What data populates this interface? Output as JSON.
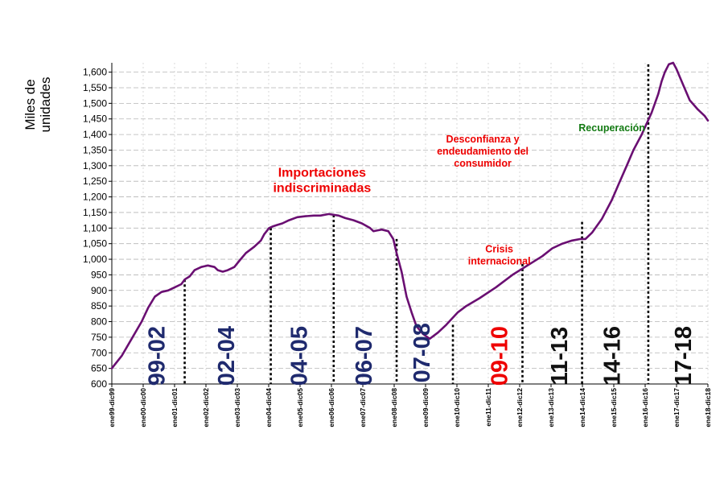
{
  "chart_data": {
    "type": "line",
    "ylabel_lines": [
      "Miles de",
      "unidades"
    ],
    "ylim": [
      600,
      1630
    ],
    "yticks": [
      600,
      650,
      700,
      750,
      800,
      850,
      900,
      950,
      1000,
      1050,
      1100,
      1150,
      1200,
      1250,
      1300,
      1350,
      1400,
      1450,
      1500,
      1550,
      1600
    ],
    "ytick_labels": [
      "600",
      "650",
      "700",
      "750",
      "800",
      "850",
      "900",
      "950",
      "1,000",
      "1,050",
      "1,100",
      "1,150",
      "1,200",
      "1,250",
      "1,300",
      "1,350",
      "1,400",
      "1,450",
      "1,500",
      "1,550",
      "1,600"
    ],
    "xlim": [
      0,
      18
    ],
    "xtick_labels": [
      "ene99-dic99",
      "ene00-dic00",
      "ene01-dic01",
      "ene02-dic02",
      "ene03-dic03",
      "ene04-dic04",
      "ene05-dic05",
      "ene06-dic06",
      "ene07-dic07",
      "ene08-dic08",
      "ene09-dic09",
      "ene10-dic10",
      "ene11-dic11",
      "ene12-dic12",
      "ene13-dic13",
      "ene14-dic14",
      "ene15-dic15",
      "ene16-dic16",
      "ene17-dic17",
      "ene18-dic18"
    ],
    "grid": true,
    "line_color": "#6a0f72",
    "series": [
      {
        "x": [
          0,
          0.3,
          0.6,
          0.9,
          1.1,
          1.3,
          1.5,
          1.7,
          1.9,
          2.1,
          2.2,
          2.35,
          2.5,
          2.7,
          2.9,
          3.1,
          3.2,
          3.35,
          3.5,
          3.7,
          3.85,
          4.05,
          4.3,
          4.5,
          4.6,
          4.75,
          4.85,
          5.0,
          5.15,
          5.35,
          5.6,
          5.85,
          6.1,
          6.3,
          6.55,
          6.85,
          7.05,
          7.3,
          7.55,
          7.8,
          7.9,
          8.0,
          8.15,
          8.35,
          8.5,
          8.6,
          8.75,
          8.9,
          9.05,
          9.2,
          9.4,
          9.6,
          9.85,
          10.1,
          10.45,
          10.7,
          11.1,
          11.6,
          12.1,
          12.55,
          13.0,
          13.3,
          13.6,
          13.9,
          14.15,
          14.3,
          14.5,
          14.8,
          15.1,
          15.3,
          15.55,
          15.75,
          16.0,
          16.3,
          16.5,
          16.6,
          16.7,
          16.82,
          16.95,
          17.05,
          17.25,
          17.45,
          17.7,
          17.9,
          18.0
        ],
        "y": [
          650,
          690,
          745,
          800,
          845,
          880,
          895,
          900,
          910,
          920,
          935,
          945,
          965,
          975,
          980,
          975,
          965,
          960,
          965,
          975,
          995,
          1020,
          1040,
          1060,
          1080,
          1100,
          1105,
          1110,
          1115,
          1125,
          1135,
          1138,
          1140,
          1140,
          1145,
          1140,
          1132,
          1125,
          1115,
          1100,
          1090,
          1092,
          1095,
          1090,
          1065,
          1020,
          960,
          880,
          830,
          785,
          760,
          745,
          765,
          790,
          830,
          850,
          875,
          910,
          950,
          980,
          1010,
          1035,
          1050,
          1060,
          1065,
          1065,
          1085,
          1130,
          1190,
          1240,
          1300,
          1350,
          1400,
          1470,
          1530,
          1570,
          1600,
          1625,
          1630,
          1610,
          1560,
          1510,
          1480,
          1460,
          1445
        ]
      }
    ],
    "period_markers": [
      {
        "x": 2.2,
        "y_end": 935
      },
      {
        "x": 4.8,
        "y_end": 1100
      },
      {
        "x": 6.7,
        "y_end": 1142
      },
      {
        "x": 8.6,
        "y_end": 1065
      },
      {
        "x": 10.3,
        "y_end": 790
      },
      {
        "x": 12.4,
        "y_end": 985
      },
      {
        "x": 14.2,
        "y_end": 1120
      },
      {
        "x": 16.2,
        "y_end": 1625
      }
    ],
    "period_labels": [
      {
        "text": "99-02",
        "color": "#1f2a6e",
        "x": 1.35,
        "y": 690
      },
      {
        "text": "02-04",
        "color": "#1f2a6e",
        "x": 3.45,
        "y": 690
      },
      {
        "text": "04-05",
        "color": "#1f2a6e",
        "x": 5.65,
        "y": 690
      },
      {
        "text": "06-07",
        "color": "#1f2a6e",
        "x": 7.6,
        "y": 690
      },
      {
        "text": "07-08",
        "color": "#1f2a6e",
        "x": 9.35,
        "y": 700
      },
      {
        "text": "09-10",
        "color": "#ee0000",
        "x": 11.7,
        "y": 690
      },
      {
        "text": "11-13",
        "color": "#111111",
        "x": 13.5,
        "y": 690
      },
      {
        "text": "14-16",
        "color": "#111111",
        "x": 15.1,
        "y": 690
      },
      {
        "text": "17-18",
        "color": "#111111",
        "x": 17.25,
        "y": 690
      }
    ],
    "annotations": [
      {
        "lines": [
          "Importaciones",
          "indiscriminadas"
        ],
        "color": "#ee0000",
        "size": 16,
        "x": 6.35,
        "y": 1265
      },
      {
        "lines": [
          "Desconfianza y",
          "endeudamiento del",
          "consumidor"
        ],
        "color": "#ee0000",
        "size": 12.5,
        "x": 11.2,
        "y": 1375
      },
      {
        "lines": [
          "Crisis",
          "internacional"
        ],
        "color": "#ee0000",
        "size": 12.5,
        "x": 11.7,
        "y": 1022
      },
      {
        "lines": [
          "Recuperación"
        ],
        "color": "#137a13",
        "size": 12.5,
        "x": 15.1,
        "y": 1410
      }
    ]
  }
}
